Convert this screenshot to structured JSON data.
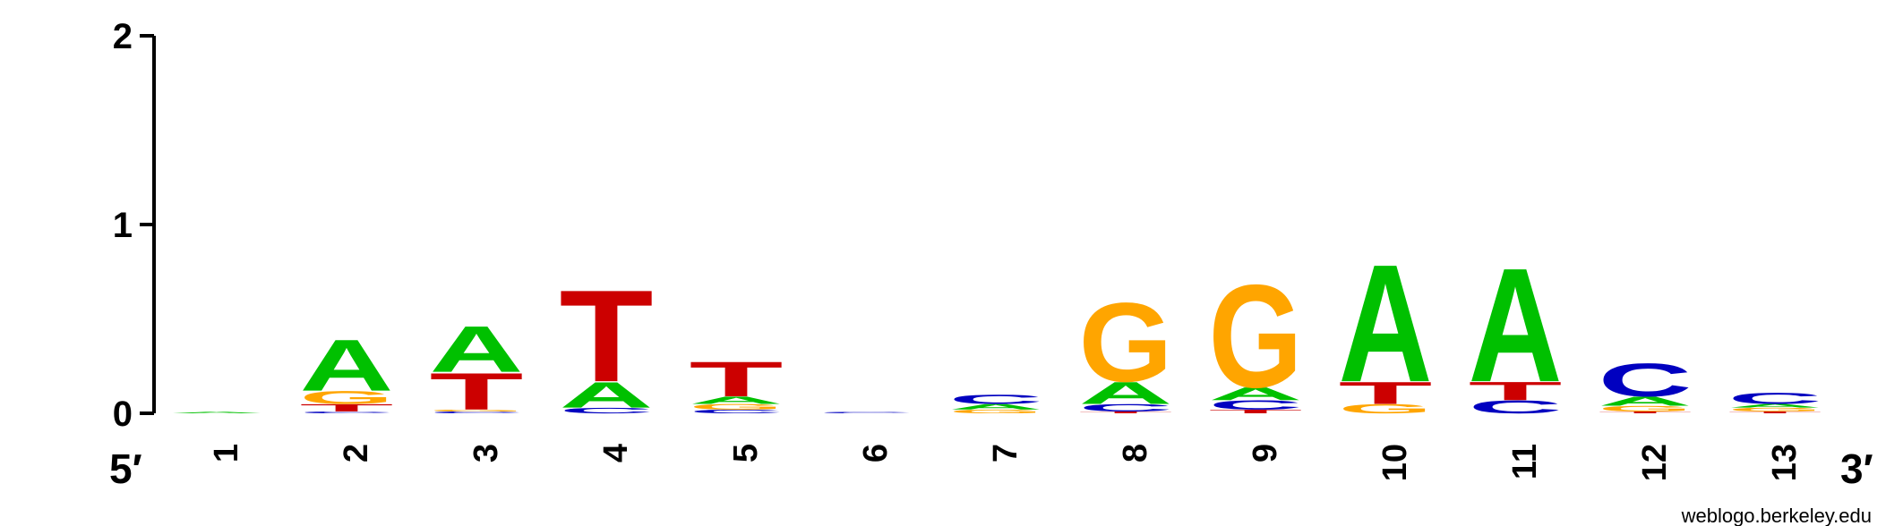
{
  "chart_data": {
    "type": "sequence-logo",
    "ylim": [
      0,
      2
    ],
    "yticks": [
      "0",
      "1",
      "2"
    ],
    "five_prime_label": "5′",
    "three_prime_label": "3′",
    "colors": {
      "A": "#00c000",
      "C": "#0000c0",
      "G": "#ffa500",
      "T": "#cc0000"
    },
    "positions": [
      {
        "label": "1",
        "stack": [
          {
            "base": "A",
            "bits": 0.008
          }
        ]
      },
      {
        "label": "2",
        "stack": [
          {
            "base": "C",
            "bits": 0.01
          },
          {
            "base": "T",
            "bits": 0.04
          },
          {
            "base": "G",
            "bits": 0.07
          },
          {
            "base": "A",
            "bits": 0.28
          }
        ]
      },
      {
        "label": "3",
        "stack": [
          {
            "base": "C",
            "bits": 0.01
          },
          {
            "base": "G",
            "bits": 0.01
          },
          {
            "base": "T",
            "bits": 0.2
          },
          {
            "base": "A",
            "bits": 0.25
          }
        ]
      },
      {
        "label": "4",
        "stack": [
          {
            "base": "C",
            "bits": 0.03
          },
          {
            "base": "A",
            "bits": 0.14
          },
          {
            "base": "T",
            "bits": 0.5
          }
        ]
      },
      {
        "label": "5",
        "stack": [
          {
            "base": "C",
            "bits": 0.02
          },
          {
            "base": "G",
            "bits": 0.03
          },
          {
            "base": "A",
            "bits": 0.04
          },
          {
            "base": "T",
            "bits": 0.19
          }
        ]
      },
      {
        "label": "6",
        "stack": [
          {
            "base": "C",
            "bits": 0.008
          }
        ]
      },
      {
        "label": "7",
        "stack": [
          {
            "base": "G",
            "bits": 0.02
          },
          {
            "base": "A",
            "bits": 0.03
          },
          {
            "base": "C",
            "bits": 0.05
          }
        ]
      },
      {
        "label": "8",
        "stack": [
          {
            "base": "T",
            "bits": 0.01
          },
          {
            "base": "C",
            "bits": 0.04
          },
          {
            "base": "A",
            "bits": 0.12
          },
          {
            "base": "G",
            "bits": 0.43
          }
        ]
      },
      {
        "label": "9",
        "stack": [
          {
            "base": "T",
            "bits": 0.02
          },
          {
            "base": "C",
            "bits": 0.05
          },
          {
            "base": "A",
            "bits": 0.07
          },
          {
            "base": "G",
            "bits": 0.56
          }
        ]
      },
      {
        "label": "10",
        "stack": [
          {
            "base": "G",
            "bits": 0.05
          },
          {
            "base": "T",
            "bits": 0.12
          },
          {
            "base": "A",
            "bits": 0.64
          }
        ]
      },
      {
        "label": "11",
        "stack": [
          {
            "base": "C",
            "bits": 0.07
          },
          {
            "base": "T",
            "bits": 0.1
          },
          {
            "base": "A",
            "bits": 0.62
          }
        ]
      },
      {
        "label": "12",
        "stack": [
          {
            "base": "T",
            "bits": 0.01
          },
          {
            "base": "G",
            "bits": 0.03
          },
          {
            "base": "A",
            "bits": 0.05
          },
          {
            "base": "C",
            "bits": 0.18
          }
        ]
      },
      {
        "label": "13",
        "stack": [
          {
            "base": "T",
            "bits": 0.01
          },
          {
            "base": "G",
            "bits": 0.02
          },
          {
            "base": "A",
            "bits": 0.02
          },
          {
            "base": "C",
            "bits": 0.06
          }
        ]
      }
    ]
  },
  "credit": "weblogo.berkeley.edu"
}
